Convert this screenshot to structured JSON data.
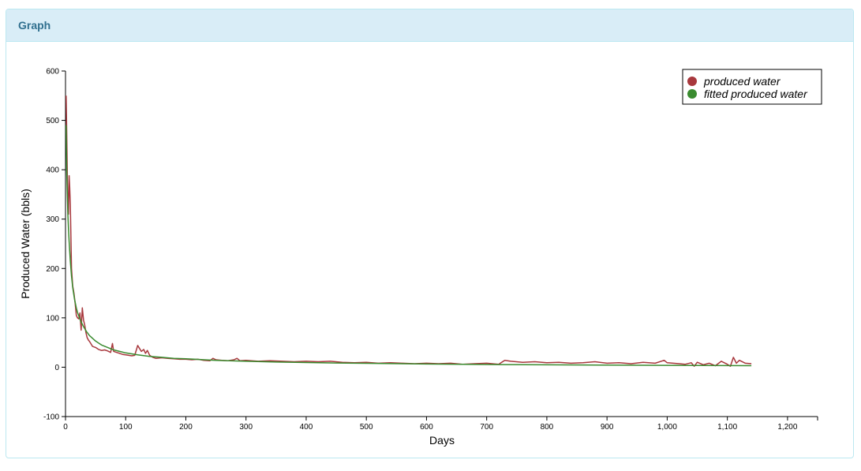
{
  "panel": {
    "title": "Graph"
  },
  "chart_data": {
    "type": "line",
    "xlabel": "Days",
    "ylabel": "Produced Water (bbls)",
    "xlim": [
      0,
      1250
    ],
    "ylim": [
      -100,
      600
    ],
    "x_ticks": [
      0,
      100,
      200,
      300,
      400,
      500,
      600,
      700,
      800,
      900,
      1000,
      1100,
      1200
    ],
    "x_tick_labels": [
      "0",
      "100",
      "200",
      "300",
      "400",
      "500",
      "600",
      "700",
      "800",
      "900",
      "1,000",
      "1,100",
      "1,200"
    ],
    "y_ticks": [
      -100,
      0,
      100,
      200,
      300,
      400,
      500,
      600
    ],
    "y_tick_labels": [
      "-100",
      "0",
      "100",
      "200",
      "300",
      "400",
      "500",
      "600"
    ],
    "grid": false,
    "legend_position": "top-right",
    "series": [
      {
        "name": "produced water",
        "color": "#a8383d",
        "x": [
          1,
          2,
          3,
          4,
          5,
          6,
          7,
          8,
          10,
          12,
          14,
          16,
          18,
          20,
          22,
          24,
          26,
          28,
          30,
          32,
          34,
          36,
          38,
          40,
          45,
          50,
          55,
          60,
          65,
          70,
          75,
          78,
          80,
          85,
          90,
          95,
          100,
          105,
          110,
          115,
          120,
          123,
          126,
          130,
          133,
          136,
          140,
          145,
          150,
          160,
          170,
          180,
          190,
          200,
          210,
          220,
          230,
          240,
          245,
          250,
          260,
          270,
          280,
          285,
          290,
          300,
          320,
          340,
          360,
          380,
          400,
          420,
          440,
          460,
          480,
          500,
          520,
          540,
          560,
          580,
          600,
          620,
          640,
          660,
          680,
          700,
          720,
          730,
          740,
          760,
          780,
          800,
          820,
          840,
          860,
          880,
          900,
          920,
          940,
          960,
          980,
          995,
          1000,
          1010,
          1020,
          1030,
          1040,
          1045,
          1050,
          1060,
          1070,
          1080,
          1090,
          1100,
          1105,
          1110,
          1115,
          1120,
          1130,
          1140
        ],
        "y": [
          550,
          480,
          390,
          330,
          310,
          388,
          365,
          330,
          200,
          165,
          150,
          130,
          105,
          100,
          98,
          110,
          75,
          120,
          95,
          85,
          70,
          60,
          55,
          52,
          42,
          40,
          36,
          34,
          35,
          33,
          30,
          48,
          32,
          30,
          28,
          26,
          25,
          24,
          23,
          24,
          44,
          38,
          32,
          36,
          28,
          34,
          24,
          20,
          18,
          19,
          18,
          17,
          16,
          16,
          15,
          16,
          14,
          13,
          18,
          15,
          14,
          13,
          15,
          18,
          13,
          14,
          12,
          13,
          12,
          11,
          12,
          11,
          12,
          10,
          9,
          10,
          8,
          9,
          8,
          7,
          8,
          7,
          8,
          6,
          7,
          8,
          6,
          14,
          12,
          10,
          11,
          9,
          10,
          8,
          9,
          11,
          8,
          9,
          7,
          10,
          8,
          14,
          9,
          8,
          7,
          6,
          9,
          2,
          10,
          5,
          8,
          3,
          12,
          6,
          2,
          20,
          8,
          14,
          8,
          7
        ]
      },
      {
        "name": "fitted produced water",
        "color": "#3a8b2f",
        "x": [
          1,
          2,
          3,
          4,
          5,
          6,
          8,
          10,
          12,
          15,
          18,
          20,
          25,
          30,
          35,
          40,
          50,
          60,
          70,
          80,
          90,
          100,
          120,
          140,
          160,
          180,
          200,
          250,
          300,
          350,
          400,
          450,
          500,
          600,
          700,
          800,
          900,
          1000,
          1100,
          1140
        ],
        "y": [
          490,
          400,
          350,
          310,
          280,
          255,
          215,
          185,
          162,
          138,
          120,
          111,
          94,
          82,
          72,
          64,
          53,
          45,
          40,
          35,
          32,
          29,
          25,
          22,
          20,
          18,
          17,
          14,
          12,
          10.5,
          9.5,
          8.5,
          7.8,
          6.5,
          5.5,
          4.8,
          4.2,
          3.7,
          3.3,
          3.1
        ]
      }
    ]
  }
}
